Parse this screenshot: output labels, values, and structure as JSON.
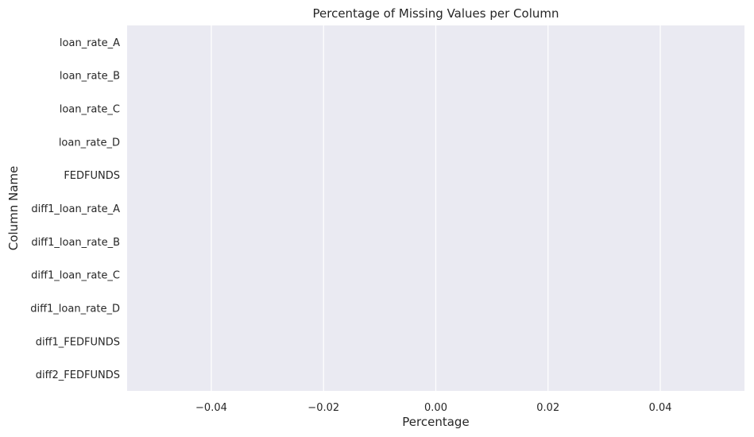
{
  "chart_data": {
    "type": "bar",
    "orientation": "horizontal",
    "title": "Percentage of Missing Values per Column",
    "xlabel": "Percentage",
    "ylabel": "Column Name",
    "categories": [
      "loan_rate_A",
      "loan_rate_B",
      "loan_rate_C",
      "loan_rate_D",
      "FEDFUNDS",
      "diff1_loan_rate_A",
      "diff1_loan_rate_B",
      "diff1_loan_rate_C",
      "diff1_loan_rate_D",
      "diff1_FEDFUNDS",
      "diff2_FEDFUNDS"
    ],
    "values": [
      0,
      0,
      0,
      0,
      0,
      0,
      0,
      0,
      0,
      0,
      0
    ],
    "xlim": [
      -0.055,
      0.055
    ],
    "xticks": [
      -0.04,
      -0.02,
      0.0,
      0.02,
      0.04
    ],
    "xtick_labels": [
      "−0.04",
      "−0.02",
      "0.00",
      "0.02",
      "0.04"
    ],
    "grid": true,
    "colors": {
      "plot_background": "#EAEAF2",
      "grid": "#FFFFFF",
      "text": "#262626"
    }
  }
}
